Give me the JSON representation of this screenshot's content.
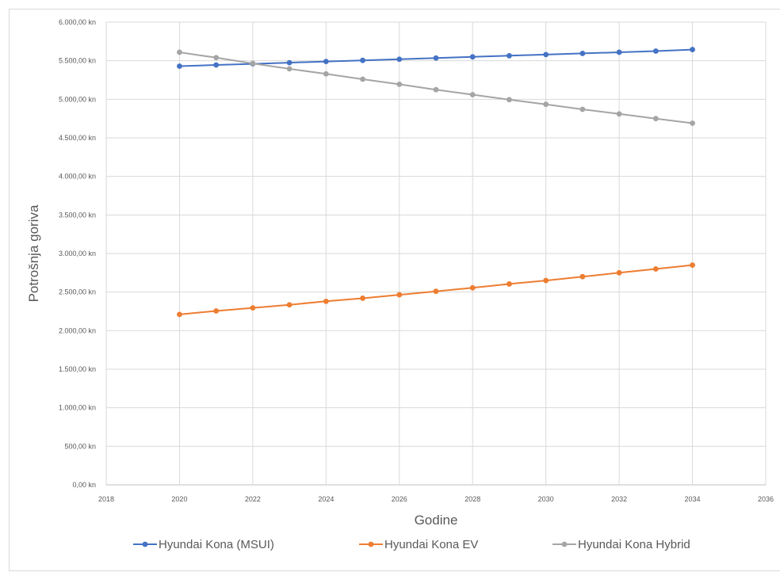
{
  "chart_data": {
    "type": "line",
    "title": "",
    "xlabel": "Godine",
    "ylabel": "Potrošnja goriva",
    "xlim": [
      2018,
      2036
    ],
    "ylim": [
      0,
      6000
    ],
    "x_ticks": [
      "2018",
      "2020",
      "2022",
      "2024",
      "2026",
      "2028",
      "2030",
      "2032",
      "2034",
      "2036"
    ],
    "y_ticks": [
      "0,00 kn",
      "500,00 kn",
      "1.000,00 kn",
      "1.500,00 kn",
      "2.000,00 kn",
      "2.500,00 kn",
      "3.000,00 kn",
      "3.500,00 kn",
      "4.000,00 kn",
      "4.500,00 kn",
      "5.000,00 kn",
      "5.500,00 kn",
      "6.000,00 kn"
    ],
    "grid": "horizontal and vertical",
    "legend": "bottom",
    "x": [
      2020,
      2021,
      2022,
      2023,
      2024,
      2025,
      2026,
      2027,
      2028,
      2029,
      2030,
      2031,
      2032,
      2033,
      2034
    ],
    "series": [
      {
        "name": "Hyundai Kona (MSUI)",
        "color": "#4472c4",
        "values": [
          5430,
          5445,
          5460,
          5475,
          5490,
          5505,
          5520,
          5535,
          5550,
          5565,
          5580,
          5595,
          5610,
          5625,
          5645
        ]
      },
      {
        "name": "Hyundai Kona EV",
        "color": "#ed7d31",
        "values": [
          2210,
          2255,
          2295,
          2335,
          2380,
          2420,
          2465,
          2510,
          2555,
          2605,
          2650,
          2700,
          2750,
          2800,
          2850
        ]
      },
      {
        "name": "Hyundai Kona Hybrid",
        "color": "#a5a5a5",
        "values": [
          5610,
          5540,
          5465,
          5395,
          5330,
          5260,
          5195,
          5125,
          5060,
          4995,
          4935,
          4870,
          4810,
          4750,
          4690
        ]
      }
    ]
  }
}
